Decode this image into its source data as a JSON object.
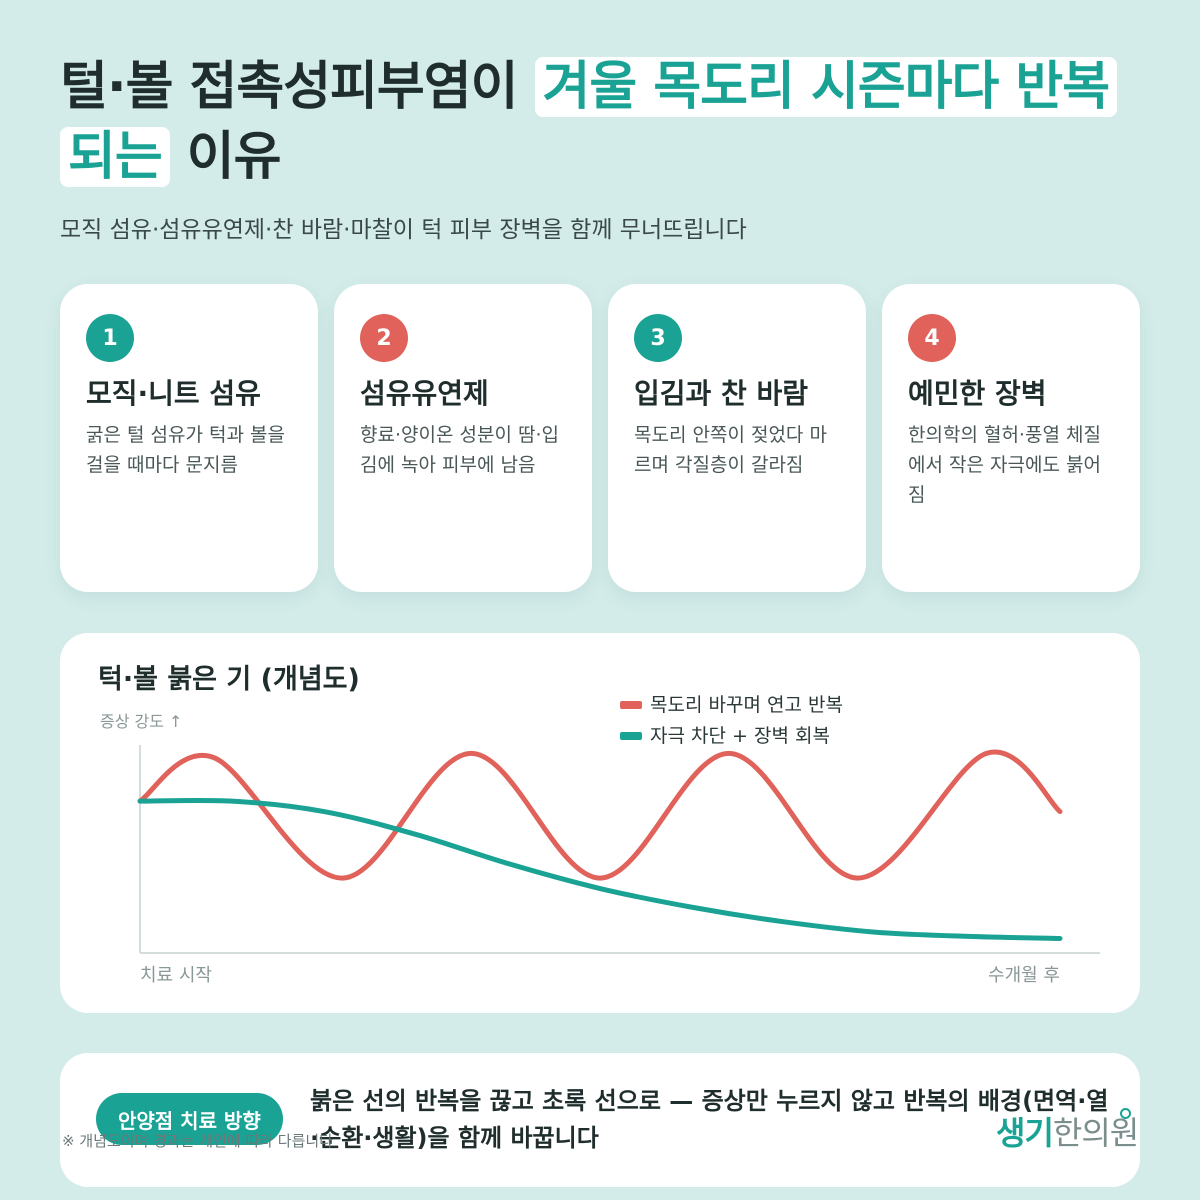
{
  "header": {
    "title_prefix": "털·볼 접촉성피부염이 ",
    "title_highlight": "겨울 목도리 시즌마다 반복되는",
    "title_suffix": " 이유",
    "subtitle": "모직 섬유·섬유유연제·찬 바람·마찰이 턱 피부 장벽을 함께 무너뜨립니다"
  },
  "colors": {
    "accent_teal": "#1aa394",
    "accent_red": "#e0625a",
    "background": "#d3ecea"
  },
  "cards": [
    {
      "number": "1",
      "title": "모직·니트 섬유",
      "body": "굵은 털 섬유가 턱과 볼을 걸을 때마다 문지름",
      "badge_color": "#1aa394"
    },
    {
      "number": "2",
      "title": "섬유유연제",
      "body": "향료·양이온 성분이 땀·입김에 녹아 피부에 남음",
      "badge_color": "#e0625a"
    },
    {
      "number": "3",
      "title": "입김과 찬 바람",
      "body": "목도리 안쪽이 젖었다 마르며 각질층이 갈라짐",
      "badge_color": "#1aa394"
    },
    {
      "number": "4",
      "title": "예민한 장벽",
      "body": "한의학의 혈허·풍열 체질에서 작은 자극에도 붉어짐",
      "badge_color": "#e0625a"
    }
  ],
  "chart": {
    "title": "턱·볼 붉은 기 (개념도)"
  },
  "chart_data": {
    "type": "line",
    "title": "턱·볼 붉은 기 (개념도)",
    "ylabel": "증상 강도 ↑",
    "x_tick_labels": [
      "치료 시작",
      "수개월 후"
    ],
    "xlim": [
      0,
      10
    ],
    "ylim": [
      0,
      10
    ],
    "grid": false,
    "legend_position": "top-right",
    "series": [
      {
        "name": "목도리 바꾸며 연고 반복",
        "color": "#e0625a",
        "x": [
          0,
          0.8,
          2.2,
          3.6,
          5.0,
          6.4,
          7.8,
          9.2,
          10.0
        ],
        "y": [
          7.3,
          9.4,
          3.6,
          9.6,
          3.6,
          9.6,
          3.6,
          9.6,
          6.8
        ]
      },
      {
        "name": "자극 차단 + 장벽 회복",
        "color": "#1aa394",
        "x": [
          0,
          1,
          2,
          3,
          4,
          5,
          6,
          7,
          8,
          9,
          10
        ],
        "y": [
          7.3,
          7.3,
          6.8,
          5.7,
          4.3,
          3.1,
          2.2,
          1.5,
          1.0,
          0.8,
          0.7
        ]
      }
    ]
  },
  "bottom": {
    "pill_label": "안양점 치료 방향",
    "message": "붉은 선의 반복을 끊고 초록 선으로 — 증상만 누르지 않고 반복의 배경(면역·열·순환·생활)을 함께 바꿉니다",
    "note": "※ 개념도이며 경과는 개인에 따라 다릅니다",
    "logo_main": "생기",
    "logo_soft": "한의원"
  }
}
